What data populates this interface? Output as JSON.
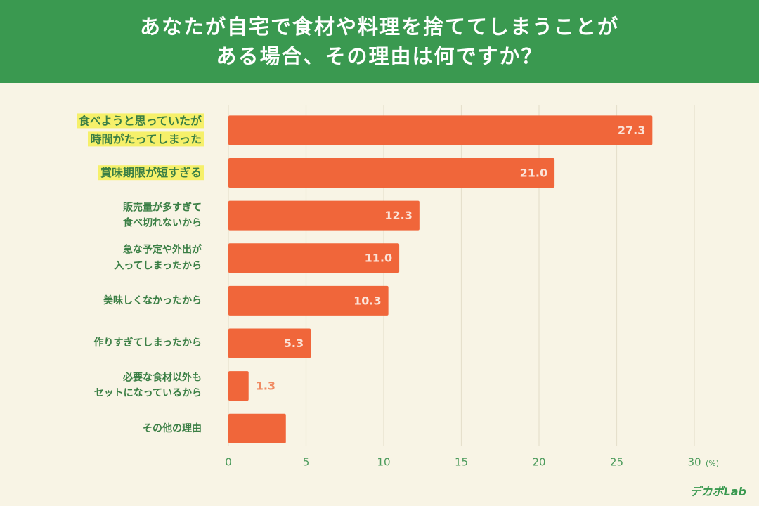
{
  "chart_data": {
    "type": "hbar",
    "title": "あなたが自宅で食材や料理を捨ててしまうことが\nある場合、その理由は何ですか？",
    "categories": [
      "食べようと思っていたが\n時間がたってしまった",
      "賞味期限が短すぎる",
      "販売量が多すぎて\n食べ切れないから",
      "急な予定や外出が\n入ってしまったから",
      "美味しくなかったから",
      "作りすぎてしまったから",
      "必要な食材以外も\nセットになっているから",
      "その他の理由"
    ],
    "values": [
      27.3,
      21.0,
      12.3,
      11.0,
      10.3,
      5.3,
      1.3,
      3.7
    ],
    "value_labels": [
      "27.3",
      "21.0",
      "12.3",
      "11.0",
      "10.3",
      "5.3",
      "1.3",
      null
    ],
    "highlighted_categories": [
      0,
      1
    ],
    "color": "#f0663a",
    "xlim": [
      0,
      30
    ],
    "xticks": [
      0,
      5,
      10,
      15,
      20,
      25,
      30
    ],
    "x_unit": "(%)",
    "grid": true
  },
  "logo": "デカボLab"
}
